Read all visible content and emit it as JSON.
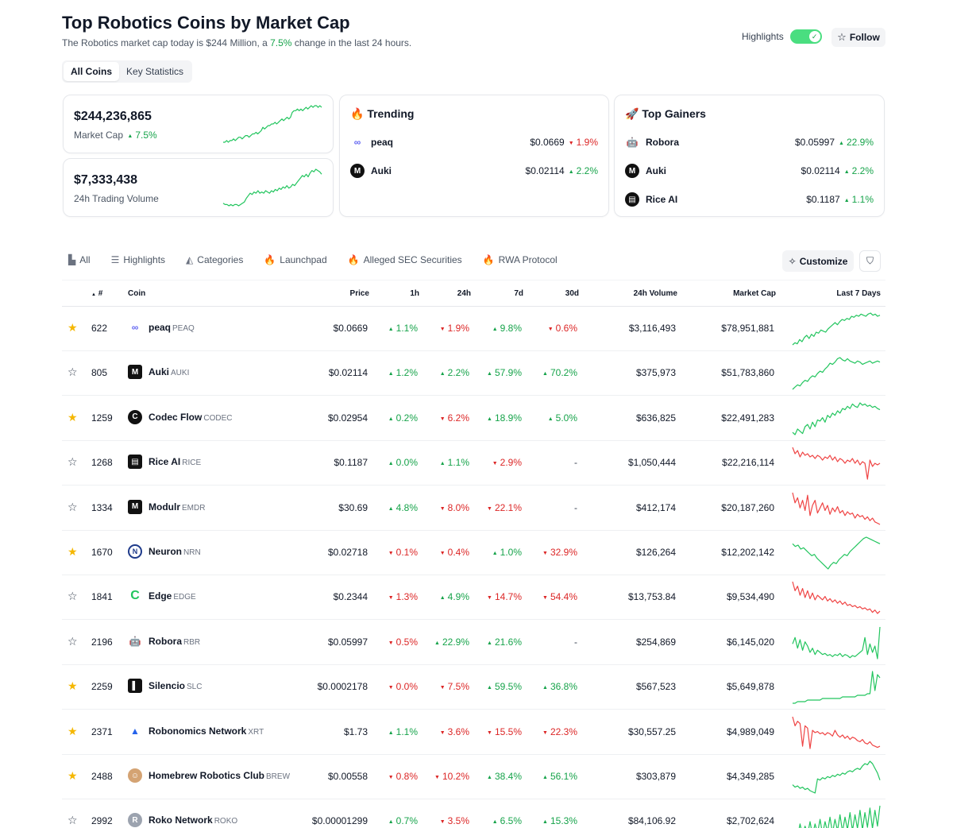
{
  "header": {
    "title": "Top Robotics Coins by Market Cap",
    "subtitle_prefix": "The Robotics market cap today is $244 Million, a ",
    "subtitle_pct": "7.5%",
    "subtitle_suffix": " change in the last 24 hours.",
    "highlights_label": "Highlights",
    "highlights_on": true,
    "follow_label": "Follow"
  },
  "tabs": {
    "all_coins": "All Coins",
    "key_statistics": "Key Statistics"
  },
  "stats": {
    "market_cap": {
      "value": "$244,236,865",
      "label": "Market Cap",
      "change": "7.5%",
      "trend": [
        3,
        3,
        4,
        3,
        4,
        4,
        5,
        4,
        5,
        6,
        6,
        5,
        6,
        7,
        7,
        6,
        7,
        8,
        8,
        9,
        8,
        9,
        10,
        12,
        11,
        12,
        13,
        13,
        14,
        14,
        15,
        14,
        15,
        16,
        17,
        16,
        17,
        18,
        17,
        18,
        21,
        22,
        22,
        23,
        22,
        23,
        22,
        23,
        24,
        23,
        24,
        25,
        24,
        25,
        25,
        24,
        25,
        24
      ]
    },
    "volume": {
      "value": "$7,333,438",
      "label": "24h Trading Volume",
      "trend": [
        4,
        3,
        3,
        2,
        3,
        2,
        3,
        3,
        2,
        3,
        4,
        5,
        8,
        10,
        12,
        11,
        13,
        12,
        14,
        12,
        13,
        12,
        14,
        13,
        12,
        14,
        13,
        15,
        14,
        16,
        15,
        17,
        16,
        18,
        16,
        17,
        19,
        18,
        20,
        22,
        24,
        26,
        25,
        27,
        25,
        28,
        30,
        29,
        31,
        30,
        29,
        27
      ]
    }
  },
  "trending": {
    "title": "Trending",
    "items": [
      {
        "name": "peaq",
        "price": "$0.0669",
        "change": "1.9%",
        "dir": "down",
        "logo": "infinity-icon"
      },
      {
        "name": "Auki",
        "price": "$0.02114",
        "change": "2.2%",
        "dir": "up",
        "logo": "auki-logo"
      }
    ]
  },
  "gainers": {
    "title": "Top Gainers",
    "items": [
      {
        "name": "Robora",
        "price": "$0.05997",
        "change": "22.9%",
        "dir": "up",
        "logo": "robot-icon"
      },
      {
        "name": "Auki",
        "price": "$0.02114",
        "change": "2.2%",
        "dir": "up",
        "logo": "auki-logo"
      },
      {
        "name": "Rice AI",
        "price": "$0.1187",
        "change": "1.1%",
        "dir": "up",
        "logo": "rice-logo"
      }
    ]
  },
  "filters": [
    "All",
    "Highlights",
    "Categories",
    "Launchpad",
    "Alleged SEC Securities",
    "RWA Protocol"
  ],
  "customize_label": "Customize",
  "columns": {
    "rank": "#",
    "coin": "Coin",
    "price": "Price",
    "h1": "1h",
    "h24": "24h",
    "d7": "7d",
    "d30": "30d",
    "volume": "24h Volume",
    "mcap": "Market Cap",
    "last7": "Last 7 Days"
  },
  "coins": [
    {
      "star": true,
      "rank": "622",
      "name": "peaq",
      "symbol": "PEAQ",
      "logo": "infinity-icon",
      "price": "$0.0669",
      "h1": "1.1%",
      "h1d": "up",
      "h24": "1.9%",
      "h24d": "down",
      "d7": "9.8%",
      "d7d": "up",
      "d30": "0.6%",
      "d30d": "down",
      "volume": "$3,116,493",
      "mcap": "$78,951,881",
      "trend": "up",
      "spark": [
        3,
        5,
        4,
        8,
        6,
        10,
        12,
        9,
        13,
        11,
        15,
        14,
        17,
        16,
        15,
        18,
        20,
        22,
        24,
        22,
        25,
        27,
        26,
        28,
        27,
        30,
        29,
        31,
        30,
        32,
        31,
        30,
        32,
        33,
        31,
        32,
        30,
        31
      ]
    },
    {
      "star": false,
      "rank": "805",
      "name": "Auki",
      "symbol": "AUKI",
      "logo": "auki-logo",
      "price": "$0.02114",
      "h1": "1.2%",
      "h1d": "up",
      "h24": "2.2%",
      "h24d": "up",
      "d7": "57.9%",
      "d7d": "up",
      "d30": "70.2%",
      "d30d": "up",
      "volume": "$375,973",
      "mcap": "$51,783,860",
      "trend": "up",
      "spark": [
        2,
        4,
        6,
        5,
        8,
        10,
        9,
        12,
        14,
        13,
        16,
        18,
        17,
        20,
        22,
        25,
        24,
        26,
        29,
        30,
        28,
        27,
        29,
        27,
        26,
        25,
        27,
        26,
        24,
        25,
        26,
        27,
        25,
        26,
        27,
        26
      ]
    },
    {
      "star": true,
      "rank": "1259",
      "name": "Codec Flow",
      "symbol": "CODEC",
      "logo": "codec-logo",
      "price": "$0.02954",
      "h1": "0.2%",
      "h1d": "up",
      "h24": "6.2%",
      "h24d": "down",
      "d7": "18.9%",
      "d7d": "up",
      "d30": "5.0%",
      "d30d": "up",
      "volume": "$636,825",
      "mcap": "$22,491,283",
      "trend": "up",
      "spark": [
        5,
        3,
        8,
        6,
        4,
        10,
        12,
        8,
        14,
        10,
        16,
        15,
        18,
        14,
        20,
        18,
        22,
        20,
        24,
        22,
        26,
        25,
        28,
        26,
        30,
        28,
        27,
        31,
        29,
        30,
        28,
        29,
        27,
        28,
        26,
        25
      ]
    },
    {
      "star": false,
      "rank": "1268",
      "name": "Rice AI",
      "symbol": "RICE",
      "logo": "rice-logo",
      "price": "$0.1187",
      "h1": "0.0%",
      "h1d": "up",
      "h24": "1.1%",
      "h24d": "up",
      "d7": "2.9%",
      "d7d": "down",
      "d30": "-",
      "d30d": "none",
      "volume": "$1,050,444",
      "mcap": "$22,216,114",
      "trend": "down",
      "spark": [
        30,
        26,
        28,
        24,
        27,
        25,
        26,
        24,
        25,
        23,
        25,
        24,
        22,
        24,
        23,
        25,
        22,
        24,
        21,
        23,
        22,
        20,
        22,
        21,
        23,
        20,
        22,
        19,
        21,
        20,
        10,
        22,
        18,
        20,
        19,
        20
      ]
    },
    {
      "star": false,
      "rank": "1334",
      "name": "Modulr",
      "symbol": "EMDR",
      "logo": "modulr-logo",
      "price": "$30.69",
      "h1": "4.8%",
      "h1d": "up",
      "h24": "8.0%",
      "h24d": "down",
      "d7": "22.1%",
      "d7d": "down",
      "d30": "-",
      "d30d": "none",
      "volume": "$412,174",
      "mcap": "$20,187,260",
      "trend": "down",
      "spark": [
        32,
        24,
        28,
        20,
        26,
        18,
        30,
        14,
        22,
        26,
        16,
        20,
        24,
        18,
        22,
        15,
        20,
        17,
        21,
        16,
        18,
        14,
        17,
        15,
        16,
        12,
        15,
        13,
        14,
        11,
        13,
        10,
        12,
        9,
        8,
        7
      ]
    },
    {
      "star": true,
      "rank": "1670",
      "name": "Neuron",
      "symbol": "NRN",
      "logo": "neuron-logo",
      "price": "$0.02718",
      "h1": "0.1%",
      "h1d": "down",
      "h24": "0.4%",
      "h24d": "down",
      "d7": "1.0%",
      "d7d": "up",
      "d30": "32.9%",
      "d30d": "down",
      "volume": "$126,264",
      "mcap": "$12,202,142",
      "trend": "up",
      "spark": [
        22,
        20,
        21,
        18,
        19,
        17,
        15,
        13,
        14,
        11,
        9,
        7,
        5,
        3,
        6,
        8,
        7,
        10,
        12,
        14,
        13,
        16,
        18,
        20,
        22,
        24,
        26,
        27,
        26,
        25,
        24,
        23,
        22
      ]
    },
    {
      "star": false,
      "rank": "1841",
      "name": "Edge",
      "symbol": "EDGE",
      "logo": "edge-logo",
      "price": "$0.2344",
      "h1": "1.3%",
      "h1d": "down",
      "h24": "4.9%",
      "h24d": "up",
      "d7": "14.7%",
      "d7d": "down",
      "d30": "54.4%",
      "d30d": "down",
      "volume": "$13,753.84",
      "mcap": "$9,534,490",
      "trend": "down",
      "spark": [
        34,
        26,
        30,
        22,
        28,
        20,
        26,
        19,
        24,
        18,
        22,
        20,
        18,
        21,
        17,
        19,
        16,
        18,
        15,
        17,
        14,
        16,
        13,
        14,
        12,
        13,
        11,
        12,
        10,
        11,
        9,
        10,
        7,
        9,
        6,
        8
      ]
    },
    {
      "star": false,
      "rank": "2196",
      "name": "Robora",
      "symbol": "RBR",
      "logo": "robot-icon",
      "price": "$0.05997",
      "h1": "0.5%",
      "h1d": "down",
      "h24": "22.9%",
      "h24d": "up",
      "d7": "21.6%",
      "d7d": "up",
      "d30": "-",
      "d30d": "none",
      "volume": "$254,869",
      "mcap": "$6,145,020",
      "trend": "up",
      "spark": [
        20,
        26,
        16,
        24,
        14,
        22,
        18,
        12,
        16,
        10,
        14,
        12,
        10,
        11,
        9,
        10,
        8,
        10,
        9,
        11,
        8,
        10,
        9,
        7,
        9,
        8,
        10,
        12,
        14,
        26,
        10,
        20,
        12,
        18,
        6,
        36
      ]
    },
    {
      "star": true,
      "rank": "2259",
      "name": "Silencio",
      "symbol": "SLC",
      "logo": "silencio-logo",
      "price": "$0.0002178",
      "h1": "0.0%",
      "h1d": "down",
      "h24": "7.5%",
      "h24d": "down",
      "d7": "59.5%",
      "d7d": "up",
      "d30": "36.8%",
      "d30d": "up",
      "volume": "$567,523",
      "mcap": "$5,649,878",
      "trend": "up",
      "spark": [
        2,
        2,
        3,
        3,
        3,
        3,
        4,
        4,
        4,
        4,
        4,
        4,
        5,
        5,
        5,
        5,
        5,
        5,
        5,
        5,
        6,
        6,
        6,
        6,
        6,
        6,
        7,
        7,
        7,
        7,
        8,
        8,
        22,
        10,
        20,
        18
      ]
    },
    {
      "star": true,
      "rank": "2371",
      "name": "Robonomics Network",
      "symbol": "XRT",
      "logo": "robonomics-logo",
      "price": "$1.73",
      "h1": "1.1%",
      "h1d": "up",
      "h24": "3.6%",
      "h24d": "down",
      "d7": "15.5%",
      "d7d": "down",
      "d30": "22.3%",
      "d30d": "down",
      "volume": "$30,557.25",
      "mcap": "$4,989,049",
      "trend": "down",
      "spark": [
        34,
        26,
        30,
        28,
        8,
        26,
        24,
        6,
        22,
        20,
        21,
        19,
        20,
        18,
        20,
        19,
        17,
        22,
        18,
        16,
        18,
        15,
        17,
        14,
        16,
        15,
        13,
        12,
        14,
        11,
        10,
        12,
        9,
        8,
        7,
        8
      ]
    },
    {
      "star": true,
      "rank": "2488",
      "name": "Homebrew Robotics Club",
      "symbol": "BREW",
      "logo": "homebrew-logo",
      "price": "$0.00558",
      "h1": "0.8%",
      "h1d": "down",
      "h24": "10.2%",
      "h24d": "down",
      "d7": "38.4%",
      "d7d": "up",
      "d30": "56.1%",
      "d30d": "up",
      "volume": "$303,879",
      "mcap": "$4,349,285",
      "trend": "up",
      "spark": [
        10,
        8,
        9,
        7,
        8,
        6,
        7,
        5,
        4,
        3,
        15,
        14,
        16,
        15,
        17,
        16,
        18,
        17,
        19,
        18,
        20,
        19,
        21,
        22,
        21,
        23,
        24,
        23,
        26,
        28,
        27,
        30,
        28,
        24,
        20,
        14
      ]
    },
    {
      "star": false,
      "rank": "2992",
      "name": "Roko Network",
      "symbol": "ROKO",
      "logo": "roko-logo",
      "price": "$0.00001299",
      "h1": "0.7%",
      "h1d": "up",
      "h24": "3.5%",
      "h24d": "down",
      "d7": "6.5%",
      "d7d": "up",
      "d30": "15.3%",
      "d30d": "up",
      "volume": "$84,106.92",
      "mcap": "$2,702,624",
      "trend": "up",
      "spark": [
        2,
        10,
        3,
        14,
        4,
        12,
        5,
        16,
        4,
        14,
        6,
        18,
        5,
        16,
        7,
        20,
        6,
        18,
        8,
        22,
        7,
        20,
        9,
        24,
        8,
        22,
        10,
        26,
        9,
        24,
        11,
        28,
        10,
        26,
        12,
        30
      ]
    }
  ]
}
